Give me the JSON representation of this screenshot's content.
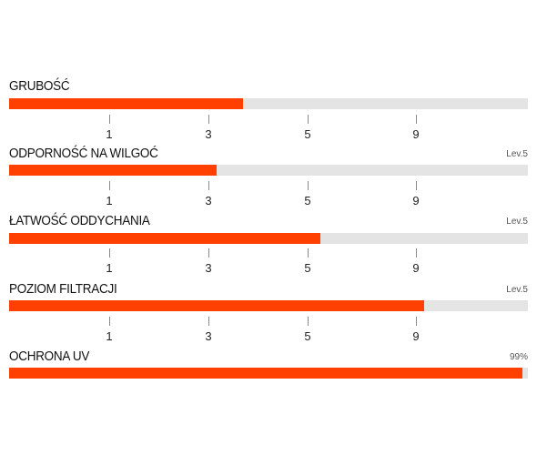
{
  "colors": {
    "fill": "#ff4000",
    "track": "#e4e4e4"
  },
  "scale_ticks": [
    "1",
    "3",
    "5",
    "9"
  ],
  "metrics": [
    {
      "label": "GRUBOŚĆ",
      "note": "",
      "fill_fraction": 0.45
    },
    {
      "label": "ODPORNOŚĆ NA WILGOĆ",
      "note": "Lev.5",
      "fill_fraction": 0.4
    },
    {
      "label": "ŁATWOŚĆ ODDYCHANIA",
      "note": "Lev.5",
      "fill_fraction": 0.6
    },
    {
      "label": "POZIOM FILTRACJI",
      "note": "Lev.5",
      "fill_fraction": 0.8
    },
    {
      "label": "OCHRONA UV",
      "note": "99%",
      "fill_fraction": 0.99
    }
  ]
}
